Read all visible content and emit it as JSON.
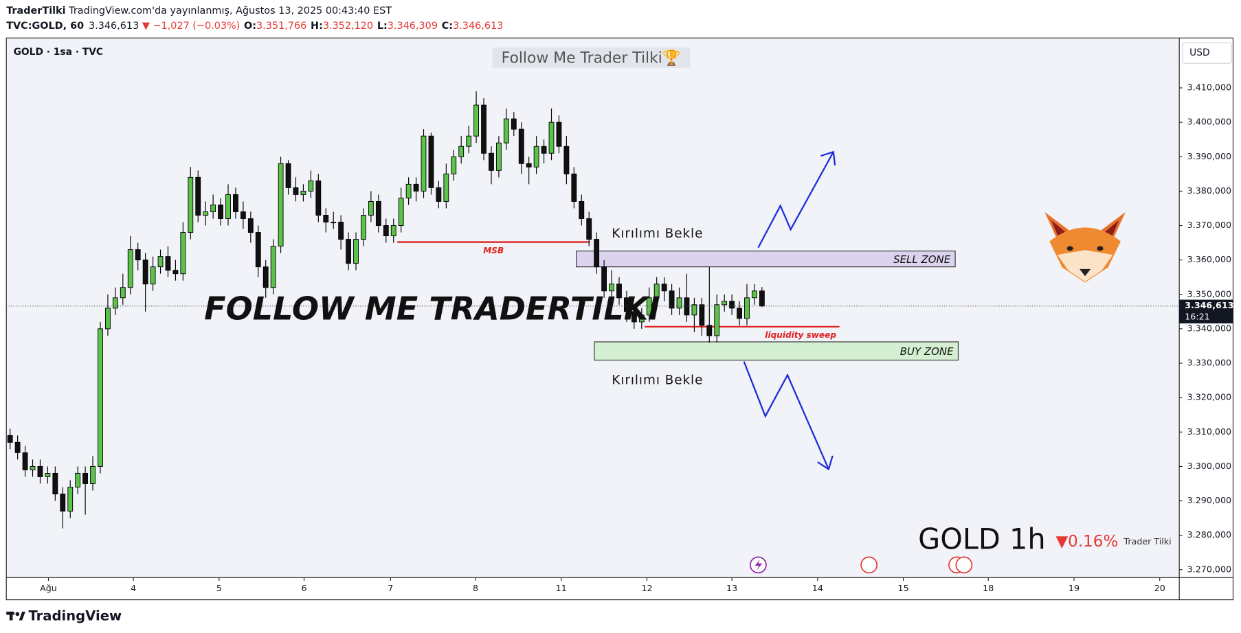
{
  "header": {
    "author": "TraderTilki",
    "published": "TradingView.com'da yayınlanmış, Ağustos 13, 2025 00:43:40 EST",
    "symbol": "TVC:GOLD, 60",
    "price": "3.346,613",
    "change": "▼ −1,027 (−0.03%)",
    "ohlc": [
      {
        "key": "O:",
        "value": "3.351,766"
      },
      {
        "key": "H:",
        "value": "3.352,120"
      },
      {
        "key": "L:",
        "value": "3.346,309"
      },
      {
        "key": "C:",
        "value": "3.346,613"
      }
    ],
    "legend": "GOLD · 1sa · TVC",
    "currency": "USD",
    "brand": "TradingView"
  },
  "chart_data": {
    "type": "candlestick",
    "title": "Follow Me Trader Tilki🏆",
    "watermark": "FOLLOW ME TRADERTILKI",
    "up_color": "#5cc24a",
    "down_color": "#111111",
    "border_color": "#000000",
    "xlim": [
      -0.5,
      155.5
    ],
    "ylim": [
      3267.7,
      3424.5
    ],
    "grid": false,
    "xticks": [
      {
        "value": 5.1,
        "label": "Ağu"
      },
      {
        "value": 16.4,
        "label": "4"
      },
      {
        "value": 27.8,
        "label": "5"
      },
      {
        "value": 39.1,
        "label": "6"
      },
      {
        "value": 50.6,
        "label": "7"
      },
      {
        "value": 61.9,
        "label": "8"
      },
      {
        "value": 73.3,
        "label": "11"
      },
      {
        "value": 84.7,
        "label": "12"
      },
      {
        "value": 96.0,
        "label": "13"
      },
      {
        "value": 107.4,
        "label": "14"
      },
      {
        "value": 118.8,
        "label": "15"
      },
      {
        "value": 130.1,
        "label": "18"
      },
      {
        "value": 141.5,
        "label": "19"
      },
      {
        "value": 152.9,
        "label": "20"
      }
    ],
    "yticks": [
      {
        "value": 3270,
        "label": "3.270,000"
      },
      {
        "value": 3280,
        "label": "3.280,000"
      },
      {
        "value": 3290,
        "label": "3.290,000"
      },
      {
        "value": 3300,
        "label": "3.300,000"
      },
      {
        "value": 3310,
        "label": "3.310,000"
      },
      {
        "value": 3320,
        "label": "3.320,000"
      },
      {
        "value": 3330,
        "label": "3.330,000"
      },
      {
        "value": 3340,
        "label": "3.340,000"
      },
      {
        "value": 3350,
        "label": "3.350,000"
      },
      {
        "value": 3360,
        "label": "3.360,000"
      },
      {
        "value": 3370,
        "label": "3.370,000"
      },
      {
        "value": 3380,
        "label": "3.380,000"
      },
      {
        "value": 3390,
        "label": "3.390,000"
      },
      {
        "value": 3400,
        "label": "3.400,000"
      },
      {
        "value": 3410,
        "label": "3.410,000"
      }
    ],
    "open": [
      3309,
      3307,
      3304,
      3299,
      3300,
      3297,
      3298,
      3292,
      3287,
      3294,
      3298,
      3295,
      3300,
      3340,
      3346,
      3349,
      3352,
      3363,
      3360,
      3353,
      3358,
      3361,
      3357,
      3356,
      3368,
      3384,
      3373,
      3374,
      3376,
      3372,
      3379,
      3374,
      3372,
      3368,
      3358,
      3352,
      3364,
      3388,
      3381,
      3379,
      3380,
      3383,
      3373,
      3371,
      3371,
      3366,
      3359,
      3366,
      3373,
      3377,
      3370,
      3367,
      3370,
      3378,
      3382,
      3380,
      3396,
      3381,
      3377,
      3385,
      3390,
      3393,
      3396,
      3405,
      3391,
      3386,
      3394,
      3401,
      3398,
      3388,
      3387,
      3393,
      3391,
      3400,
      3393,
      3385,
      3377,
      3372,
      3366,
      3358,
      3351,
      3353,
      3349,
      3345,
      3342,
      3344,
      3349,
      3353,
      3351,
      3346,
      3349,
      3344,
      3347,
      3341,
      3338,
      3347,
      3348,
      3346,
      3343,
      3349,
      3351
    ],
    "high": [
      3311,
      3309,
      3306,
      3302,
      3302,
      3300,
      3300,
      3294,
      3296,
      3300,
      3300,
      3303,
      3342,
      3350,
      3352,
      3356,
      3367,
      3365,
      3362,
      3361,
      3363,
      3364,
      3360,
      3371,
      3387,
      3386,
      3377,
      3379,
      3378,
      3382,
      3381,
      3377,
      3374,
      3370,
      3360,
      3366,
      3390,
      3389,
      3384,
      3382,
      3386,
      3385,
      3375,
      3374,
      3373,
      3368,
      3368,
      3375,
      3380,
      3379,
      3372,
      3372,
      3381,
      3384,
      3384,
      3398,
      3397,
      3383,
      3388,
      3392,
      3396,
      3399,
      3409,
      3407,
      3393,
      3396,
      3404,
      3403,
      3400,
      3390,
      3396,
      3395,
      3404,
      3402,
      3396,
      3387,
      3379,
      3374,
      3368,
      3360,
      3357,
      3355,
      3351,
      3347,
      3346,
      3352,
      3355,
      3355,
      3353,
      3352,
      3356,
      3349,
      3349,
      3358,
      3350,
      3350,
      3350,
      3348,
      3353,
      3353,
      3352.12
    ],
    "low": [
      3305,
      3302,
      3297,
      3297,
      3295,
      3295,
      3290,
      3282,
      3285,
      3292,
      3286,
      3293,
      3298,
      3338,
      3344,
      3347,
      3350,
      3357,
      3345,
      3351,
      3356,
      3355,
      3354,
      3354,
      3366,
      3371,
      3370,
      3372,
      3370,
      3370,
      3372,
      3369,
      3365,
      3355,
      3349,
      3350,
      3362,
      3379,
      3377,
      3377,
      3378,
      3371,
      3368,
      3369,
      3363,
      3357,
      3357,
      3364,
      3371,
      3368,
      3365,
      3365,
      3368,
      3376,
      3377,
      3378,
      3379,
      3375,
      3375,
      3383,
      3388,
      3391,
      3394,
      3389,
      3382,
      3384,
      3392,
      3396,
      3385,
      3382,
      3385,
      3388,
      3389,
      3391,
      3382,
      3375,
      3370,
      3364,
      3356,
      3349,
      3349,
      3347,
      3342,
      3340,
      3340,
      3342,
      3347,
      3348,
      3344,
      3344,
      3342,
      3339,
      3338,
      3336,
      3336,
      3345,
      3344,
      3341,
      3341,
      3347,
      3346.309
    ],
    "close": [
      3307,
      3304,
      3299,
      3300,
      3297,
      3298,
      3292,
      3287,
      3294,
      3298,
      3295,
      3300,
      3340,
      3346,
      3349,
      3352,
      3363,
      3360,
      3353,
      3358,
      3361,
      3357,
      3356,
      3368,
      3384,
      3373,
      3374,
      3376,
      3372,
      3379,
      3374,
      3372,
      3368,
      3358,
      3352,
      3364,
      3388,
      3381,
      3379,
      3380,
      3383,
      3373,
      3371,
      3371,
      3366,
      3359,
      3366,
      3373,
      3377,
      3370,
      3367,
      3370,
      3378,
      3382,
      3380,
      3396,
      3381,
      3377,
      3385,
      3390,
      3393,
      3396,
      3405,
      3391,
      3386,
      3394,
      3401,
      3398,
      3388,
      3387,
      3393,
      3391,
      3400,
      3393,
      3385,
      3377,
      3372,
      3366,
      3358,
      3351,
      3353,
      3349,
      3345,
      3342,
      3344,
      3349,
      3353,
      3351,
      3346,
      3349,
      3344,
      3347,
      3341,
      3338,
      3347,
      3348,
      3346,
      3343,
      3349,
      3351,
      3346.613
    ],
    "last_price": {
      "value": 3346.613,
      "label": "3.346,613"
    },
    "countdown": "16:21",
    "zones": [
      {
        "label": "SELL ZONE",
        "y": [
          3358.0,
          3362.6
        ],
        "x": [
          75.3,
          125.7
        ],
        "color": "#dcd4ee"
      },
      {
        "label": "BUY ZONE",
        "y": [
          3330.9,
          3336.2
        ],
        "x": [
          77.7,
          126.1
        ],
        "color": "#d4efd1"
      }
    ],
    "levels": [
      {
        "label": "MSB",
        "y": 3365.2,
        "x": [
          51.5,
          77.1
        ],
        "color": "#e02020"
      },
      {
        "label": "liquidity sweep",
        "y": 3340.6,
        "x": [
          84.4,
          110.3
        ],
        "color": "#e02020"
      }
    ],
    "notes": [
      "Kırılımı Bekle",
      "Kırılımı Bekle"
    ],
    "summary": {
      "symbol": "GOLD 1h",
      "change": "▼0.16%",
      "author": "Trader Tilki"
    }
  }
}
